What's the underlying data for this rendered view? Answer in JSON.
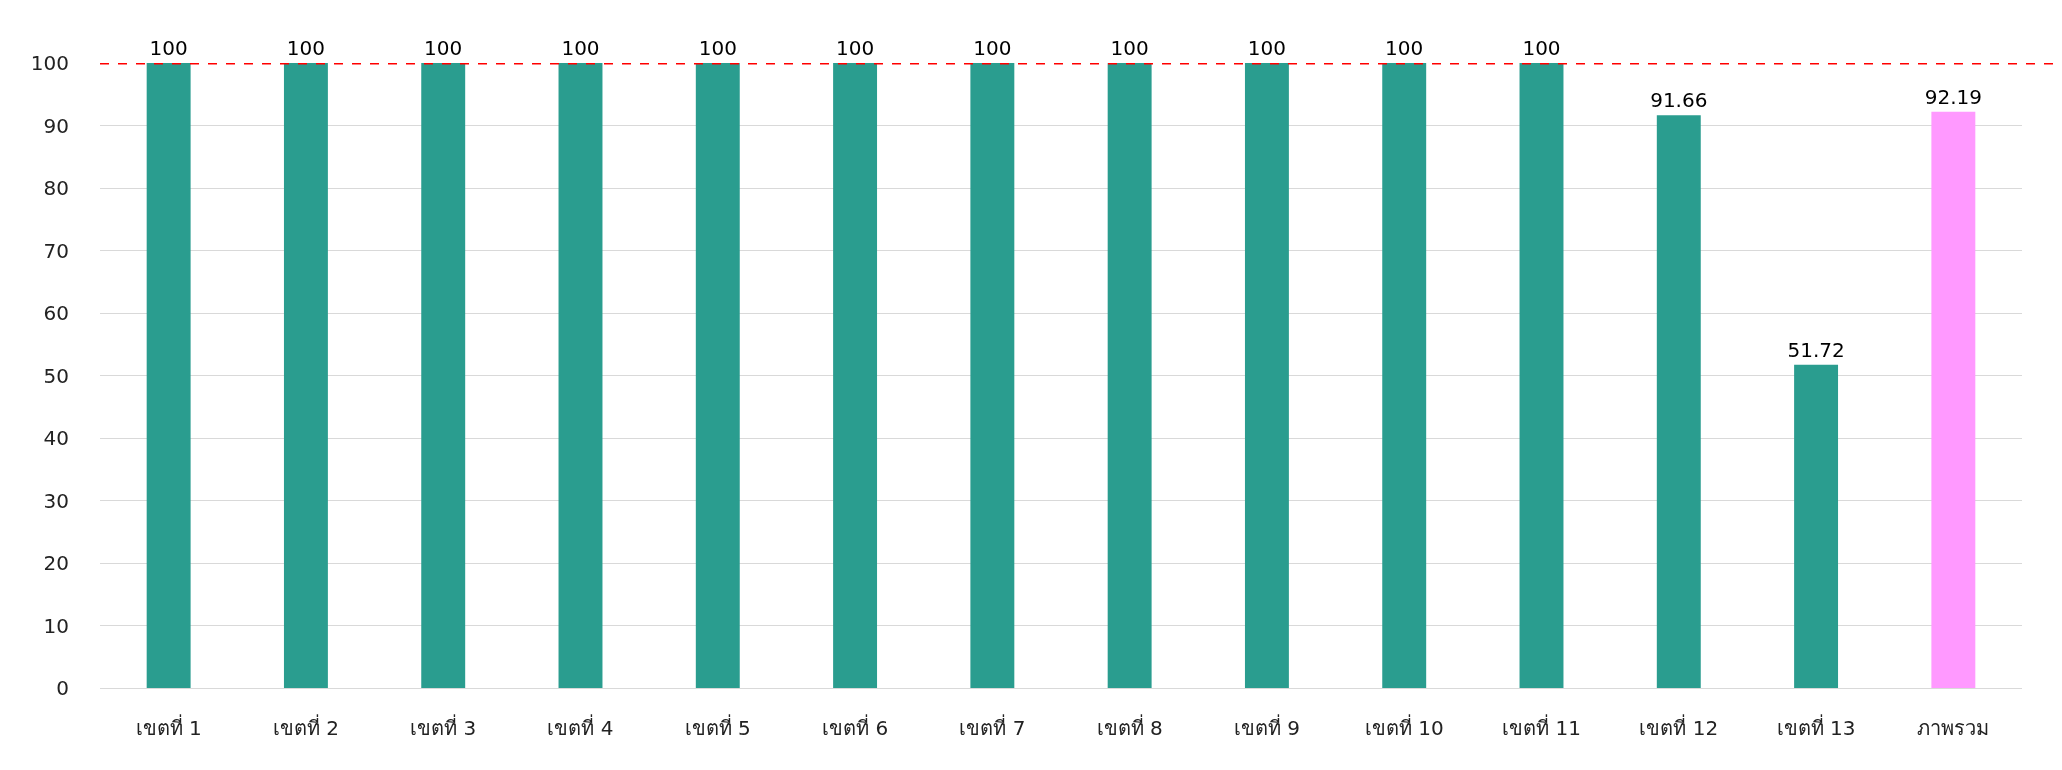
{
  "chart_data": {
    "type": "bar",
    "categories": [
      "เขตที่ 1",
      "เขตที่ 2",
      "เขตที่ 3",
      "เขตที่ 4",
      "เขตที่ 5",
      "เขตที่ 6",
      "เขตที่ 7",
      "เขตที่ 8",
      "เขตที่ 9",
      "เขตที่ 10",
      "เขตที่ 11",
      "เขตที่ 12",
      "เขตที่ 13",
      "ภาพรวม"
    ],
    "values": [
      100,
      100,
      100,
      100,
      100,
      100,
      100,
      100,
      100,
      100,
      100,
      91.66,
      51.72,
      92.19
    ],
    "colors": [
      "#2a9d8f",
      "#2a9d8f",
      "#2a9d8f",
      "#2a9d8f",
      "#2a9d8f",
      "#2a9d8f",
      "#2a9d8f",
      "#2a9d8f",
      "#2a9d8f",
      "#2a9d8f",
      "#2a9d8f",
      "#2a9d8f",
      "#2a9d8f",
      "#ff99ff"
    ],
    "data_labels": true,
    "ylim": [
      0,
      100
    ],
    "yticks": [
      0,
      10,
      20,
      30,
      40,
      50,
      60,
      70,
      80,
      90,
      100
    ],
    "grid": "y",
    "ref_lines": [
      {
        "axis": "y",
        "value": 100,
        "color": "#ff0000",
        "line_style": "dashed"
      }
    ]
  }
}
